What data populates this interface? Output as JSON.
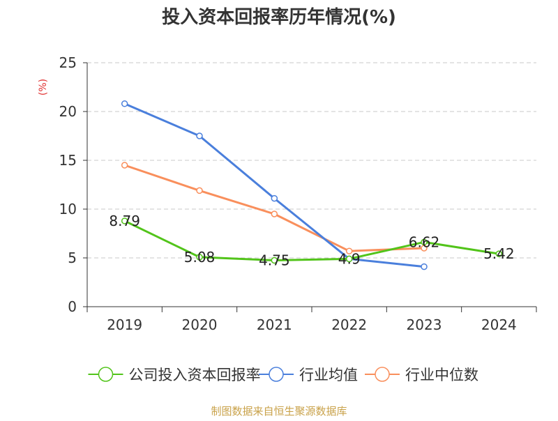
{
  "chart_data": {
    "type": "line",
    "title": "投入资本回报率历年情况(%)",
    "ylabel": "(%)",
    "xlabel": "",
    "categories": [
      "2019",
      "2020",
      "2021",
      "2022",
      "2023",
      "2024"
    ],
    "ylim": [
      0,
      25
    ],
    "yticks": [
      0,
      5,
      10,
      15,
      20,
      25
    ],
    "grid": true,
    "legend_position": "bottom",
    "series": [
      {
        "name": "公司投入资本回报率",
        "values": [
          8.79,
          5.08,
          4.75,
          4.9,
          6.62,
          5.42
        ],
        "labels": [
          "8.79",
          "5.08",
          "4.75",
          "4.9",
          "6.62",
          "5.42"
        ],
        "color": "#52c41a"
      },
      {
        "name": "行业均值",
        "values": [
          20.8,
          17.5,
          11.1,
          4.9,
          4.1,
          null
        ],
        "color": "#4a7fdc"
      },
      {
        "name": "行业中位数",
        "values": [
          14.5,
          11.9,
          9.5,
          5.7,
          6.0,
          null
        ],
        "color": "#f98f5c"
      }
    ],
    "source": "制图数据来自恒生聚源数据库",
    "colors": {
      "grid": "#c8c8c8",
      "axis": "#333333",
      "ylabel": "#e03030",
      "source": "#c9a24a"
    }
  }
}
